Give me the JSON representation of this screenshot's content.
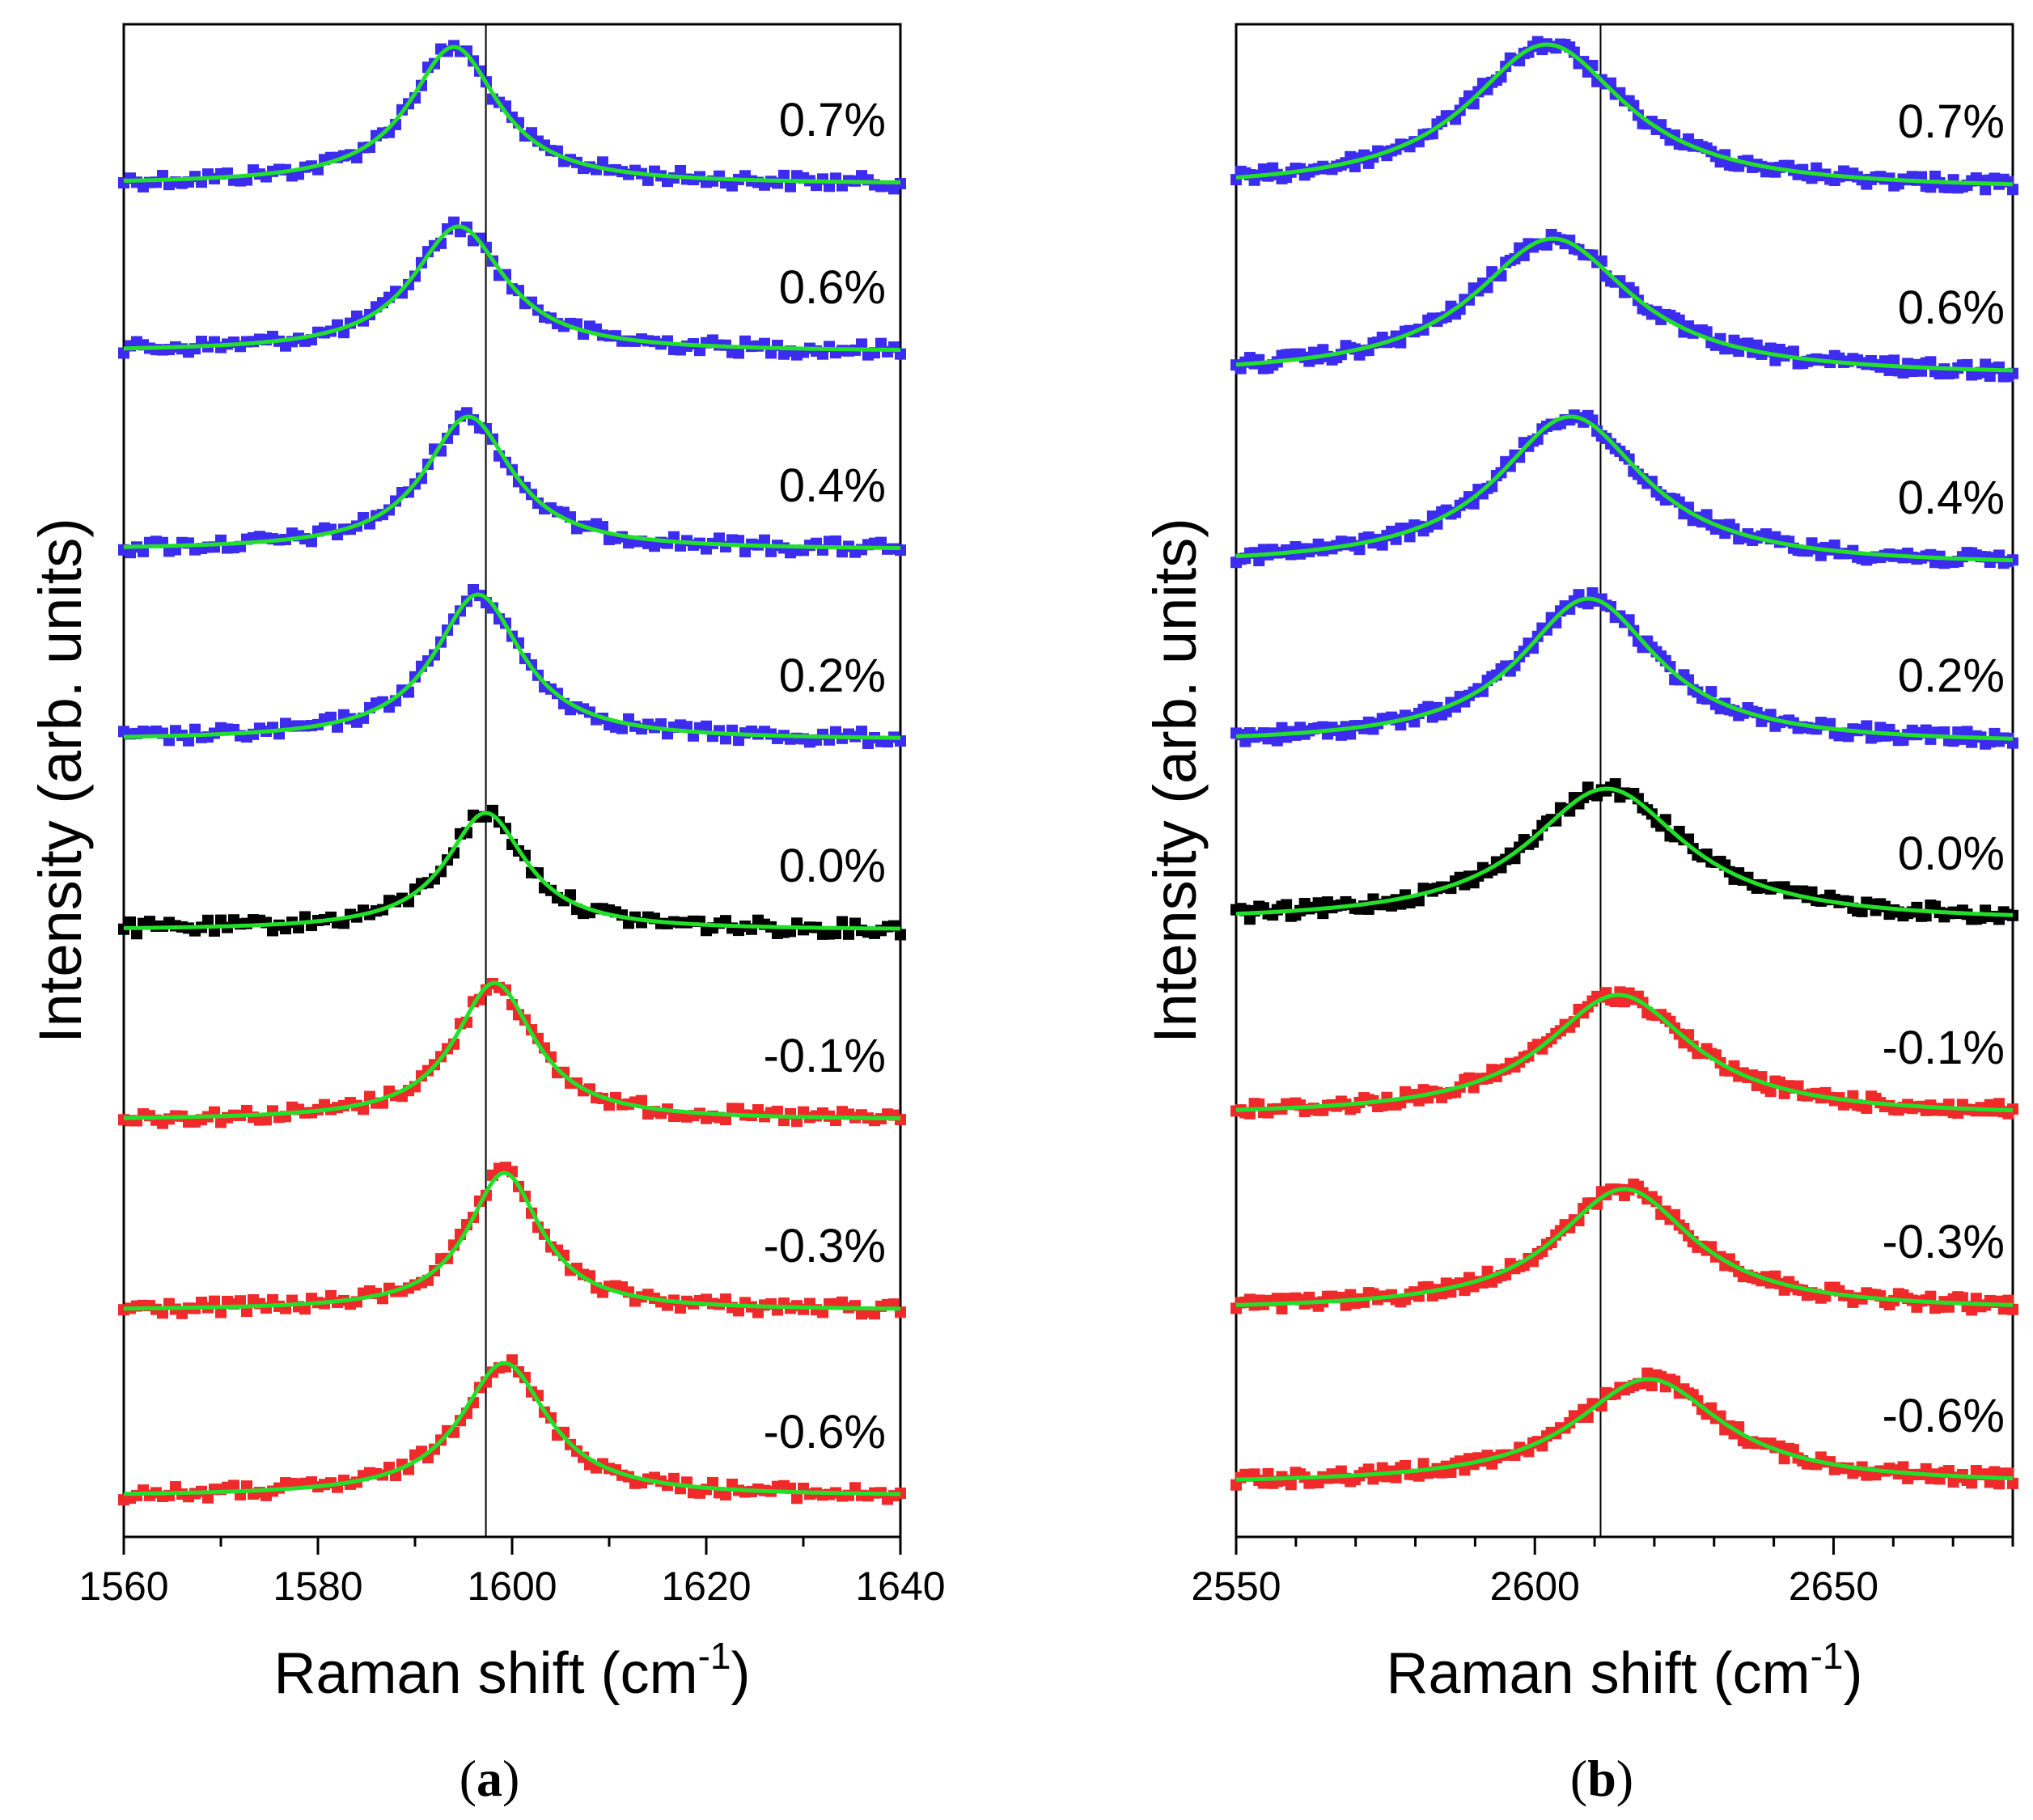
{
  "colors": {
    "tensile": "#3b2cf0",
    "unstrained": "#000000",
    "compressive": "#f02a2a",
    "fit": "#22e02a",
    "axis": "#000000"
  },
  "shared": {
    "xlabel_main": "Raman shift (cm",
    "xlabel_sup": "-1",
    "xlabel_close": ")",
    "ylabel": "Intensity (arb. units)"
  },
  "chart_data": [
    {
      "type": "line",
      "panel": "a",
      "caption_open": "(",
      "caption_letter": "a",
      "caption_close": ")",
      "xlim": [
        1560,
        1640
      ],
      "x_ticks": [
        1560,
        1580,
        1600,
        1620,
        1640
      ],
      "x_tick_labels": [
        "1560",
        "1580",
        "1600",
        "1620",
        "1640"
      ],
      "minor_tick_step": 10,
      "reference_line_x": 1597.3,
      "series": [
        {
          "name": "0.7%",
          "strain": 0.7,
          "kind": "tensile",
          "center": 1594.0,
          "hwhm": 5.6,
          "amplitude": 1.0,
          "baseline": 0.0
        },
        {
          "name": "0.6%",
          "strain": 0.6,
          "kind": "tensile",
          "center": 1594.5,
          "hwhm": 5.8,
          "amplitude": 1.0,
          "baseline": 0.0
        },
        {
          "name": "0.4%",
          "strain": 0.4,
          "kind": "tensile",
          "center": 1595.5,
          "hwhm": 5.5,
          "amplitude": 1.0,
          "baseline": 0.0
        },
        {
          "name": "0.2%",
          "strain": 0.2,
          "kind": "tensile",
          "center": 1596.5,
          "hwhm": 5.5,
          "amplitude": 1.0,
          "baseline": 0.0
        },
        {
          "name": "0.0%",
          "strain": 0.0,
          "kind": "unstrained",
          "center": 1597.3,
          "hwhm": 5.0,
          "amplitude": 1.0,
          "baseline": 0.0
        },
        {
          "name": "-0.1%",
          "strain": -0.1,
          "kind": "compressive",
          "center": 1598.2,
          "hwhm": 5.0,
          "amplitude": 1.0,
          "baseline": 0.0
        },
        {
          "name": "-0.3%",
          "strain": -0.3,
          "kind": "compressive",
          "center": 1599.2,
          "hwhm": 4.6,
          "amplitude": 1.0,
          "baseline": 0.0
        },
        {
          "name": "-0.6%",
          "strain": -0.6,
          "kind": "compressive",
          "center": 1599.2,
          "hwhm": 5.5,
          "amplitude": 1.0,
          "baseline": 0.0
        }
      ]
    },
    {
      "type": "line",
      "panel": "b",
      "caption_open": "(",
      "caption_letter": "b",
      "caption_close": ")",
      "xlim": [
        2550,
        2680
      ],
      "x_ticks": [
        2550,
        2600,
        2650
      ],
      "x_tick_labels": [
        "2550",
        "2600",
        "2650"
      ],
      "minor_tick_step": 10,
      "reference_line_x": 2611,
      "series": [
        {
          "name": "0.7%",
          "strain": 0.7,
          "kind": "tensile",
          "center": 2602,
          "hwhm": 16,
          "amplitude": 1.0,
          "baseline": 0.0
        },
        {
          "name": "0.6%",
          "strain": 0.6,
          "kind": "tensile",
          "center": 2603,
          "hwhm": 16,
          "amplitude": 1.0,
          "baseline": 0.0
        },
        {
          "name": "0.4%",
          "strain": 0.4,
          "kind": "tensile",
          "center": 2606,
          "hwhm": 15,
          "amplitude": 1.0,
          "baseline": 0.0
        },
        {
          "name": "0.2%",
          "strain": 0.2,
          "kind": "tensile",
          "center": 2609,
          "hwhm": 14,
          "amplitude": 1.0,
          "baseline": 0.0
        },
        {
          "name": "0.0%",
          "strain": 0.0,
          "kind": "unstrained",
          "center": 2612,
          "hwhm": 16,
          "amplitude": 1.0,
          "baseline": 0.0
        },
        {
          "name": "-0.1%",
          "strain": -0.1,
          "kind": "compressive",
          "center": 2614,
          "hwhm": 15,
          "amplitude": 1.0,
          "baseline": 0.0
        },
        {
          "name": "-0.3%",
          "strain": -0.3,
          "kind": "compressive",
          "center": 2615,
          "hwhm": 14,
          "amplitude": 1.0,
          "baseline": 0.0
        },
        {
          "name": "-0.6%",
          "strain": -0.6,
          "kind": "compressive",
          "center": 2619,
          "hwhm": 15,
          "amplitude": 1.0,
          "baseline": 0.0
        }
      ]
    }
  ]
}
